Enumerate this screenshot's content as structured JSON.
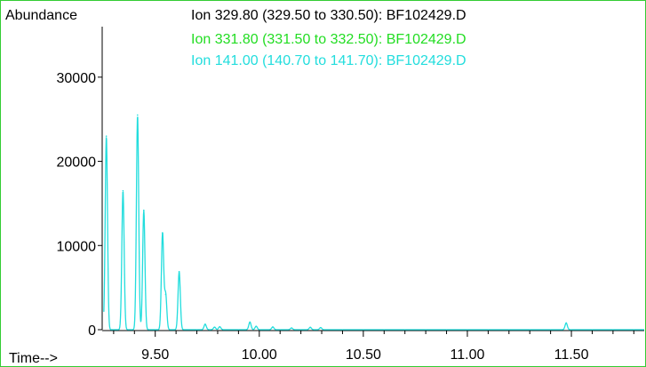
{
  "chart_data": {
    "type": "line",
    "ylabel": "Abundance",
    "xlabel": "Time-->",
    "xlim": [
      9.245,
      11.85
    ],
    "ylim": [
      0,
      36000
    ],
    "x_ticks": [
      9.5,
      10.0,
      10.5,
      11.0,
      11.5
    ],
    "x_tick_labels": [
      "9.50",
      "10.00",
      "10.50",
      "11.00",
      "11.50"
    ],
    "y_ticks": [
      0,
      10000,
      20000,
      30000
    ],
    "y_tick_labels": [
      "0",
      "10000",
      "20000",
      "30000"
    ],
    "legend_placement": "top",
    "series": [
      {
        "name": "Ion 329.80 (329.50 to 330.50): BF102429.D",
        "color": "#000000",
        "peaks": []
      },
      {
        "name": "Ion 331.80 (331.50 to 332.50): BF102429.D",
        "color": "#22dd22",
        "peaks": []
      },
      {
        "name": "Ion 141.00 (140.70 to 141.70): BF102429.D",
        "color": "#22dddd",
        "peaks": [
          {
            "x": 9.265,
            "y": 23000
          },
          {
            "x": 9.345,
            "y": 16500
          },
          {
            "x": 9.415,
            "y": 25500
          },
          {
            "x": 9.445,
            "y": 14200
          },
          {
            "x": 9.535,
            "y": 11500
          },
          {
            "x": 9.55,
            "y": 4200
          },
          {
            "x": 9.615,
            "y": 6900
          },
          {
            "x": 9.74,
            "y": 650
          },
          {
            "x": 9.785,
            "y": 300
          },
          {
            "x": 9.81,
            "y": 350
          },
          {
            "x": 9.955,
            "y": 900
          },
          {
            "x": 9.985,
            "y": 400
          },
          {
            "x": 10.065,
            "y": 320
          },
          {
            "x": 10.155,
            "y": 200
          },
          {
            "x": 10.245,
            "y": 280
          },
          {
            "x": 10.295,
            "y": 250
          },
          {
            "x": 11.475,
            "y": 800
          }
        ]
      }
    ]
  }
}
